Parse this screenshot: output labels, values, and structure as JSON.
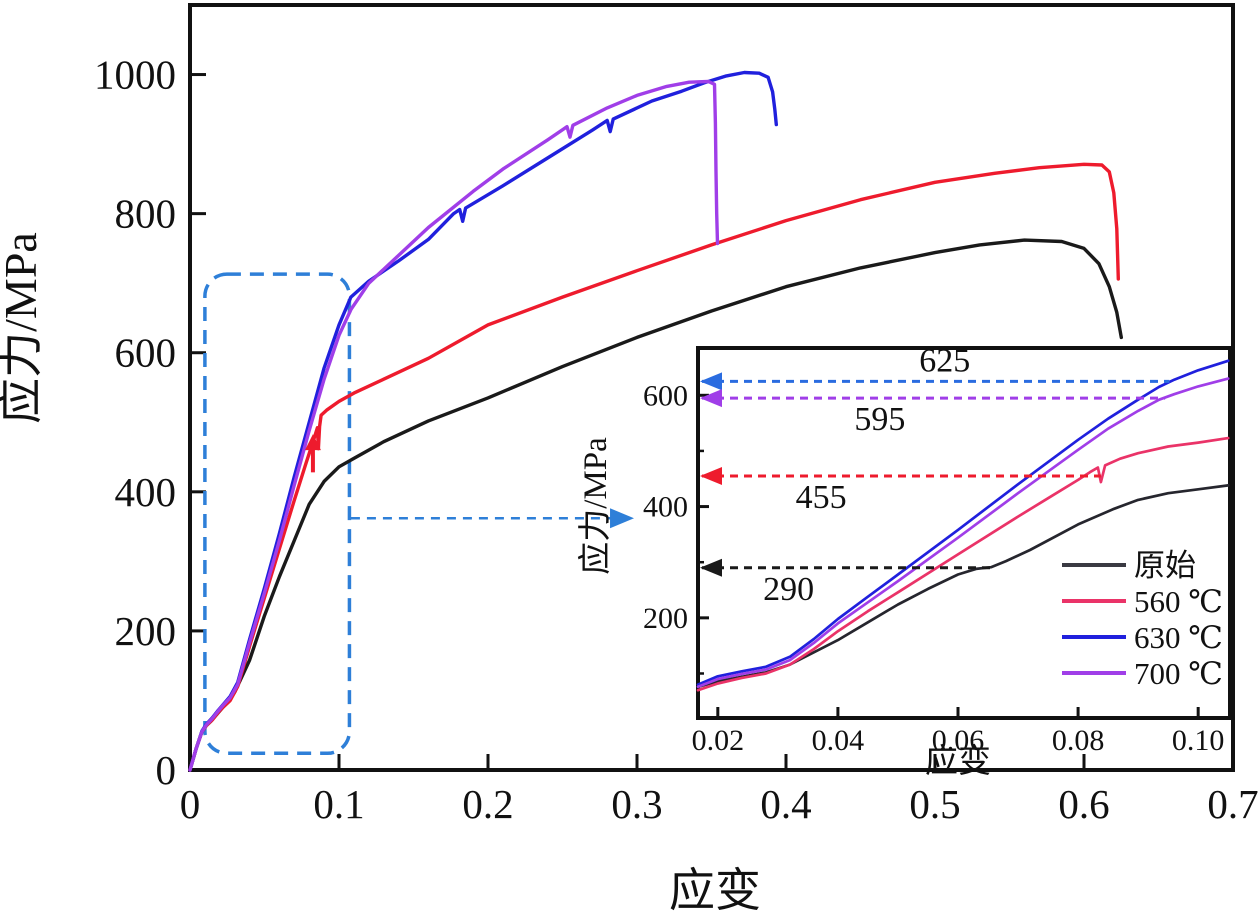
{
  "figure": {
    "type": "stress-strain curves figure with magnified inset",
    "background": "#ffffff"
  },
  "colors": {
    "frame": "#111111",
    "zoom_box_blue": "#2e7fd8",
    "annotation_blue": "#2a6ce0",
    "annotation_purple": "#a03ee8",
    "annotation_red": "#ee1b2d",
    "annotation_black": "#1a1a1a"
  },
  "chart_data": {
    "type": "line",
    "main": {
      "xlabel": "应变",
      "ylabel": "应力/MPa",
      "xlim": [
        0,
        0.7
      ],
      "ylim": [
        0,
        1100
      ],
      "xticks": [
        0,
        0.1,
        0.2,
        0.3,
        0.4,
        0.5,
        0.6,
        0.7
      ],
      "xtick_labels": [
        "0",
        "0.1",
        "0.2",
        "0.3",
        "0.4",
        "0.5",
        "0.6",
        "0.7"
      ],
      "yticks": [
        0,
        200,
        400,
        600,
        800,
        1000
      ],
      "ytick_labels": [
        "0",
        "200",
        "400",
        "600",
        "800",
        "1000"
      ],
      "grid": false,
      "series": [
        {
          "id": "original",
          "name": "原始",
          "color": "#1a1a1a",
          "points": [
            [
              0,
              0
            ],
            [
              0.004,
              30
            ],
            [
              0.008,
              55
            ],
            [
              0.011,
              64
            ],
            [
              0.014,
              70
            ],
            [
              0.018,
              80
            ],
            [
              0.022,
              90
            ],
            [
              0.026,
              98
            ],
            [
              0.03,
              112
            ],
            [
              0.04,
              158
            ],
            [
              0.05,
              222
            ],
            [
              0.06,
              278
            ],
            [
              0.07,
              330
            ],
            [
              0.08,
              382
            ],
            [
              0.09,
              415
            ],
            [
              0.1,
              436
            ],
            [
              0.11,
              448
            ],
            [
              0.13,
              472
            ],
            [
              0.16,
              502
            ],
            [
              0.2,
              535
            ],
            [
              0.25,
              580
            ],
            [
              0.3,
              622
            ],
            [
              0.35,
              660
            ],
            [
              0.4,
              695
            ],
            [
              0.45,
              722
            ],
            [
              0.5,
              744
            ],
            [
              0.53,
              755
            ],
            [
              0.56,
              762
            ],
            [
              0.585,
              760
            ],
            [
              0.6,
              750
            ],
            [
              0.61,
              728
            ],
            [
              0.617,
              695
            ],
            [
              0.622,
              658
            ],
            [
              0.625,
              622
            ]
          ]
        },
        {
          "id": "560c",
          "name": "560 ℃",
          "color": "#ee1b2d",
          "points": [
            [
              0,
              0
            ],
            [
              0.004,
              30
            ],
            [
              0.008,
              55
            ],
            [
              0.011,
              64
            ],
            [
              0.015,
              72
            ],
            [
              0.019,
              83
            ],
            [
              0.023,
              92
            ],
            [
              0.027,
              100
            ],
            [
              0.032,
              120
            ],
            [
              0.04,
              178
            ],
            [
              0.05,
              248
            ],
            [
              0.06,
              318
            ],
            [
              0.07,
              388
            ],
            [
              0.078,
              442
            ],
            [
              0.083,
              475
            ],
            [
              0.0855,
              492
            ],
            [
              0.0862,
              462
            ],
            [
              0.087,
              494
            ],
            [
              0.088,
              510
            ],
            [
              0.092,
              518
            ],
            [
              0.1,
              530
            ],
            [
              0.11,
              542
            ],
            [
              0.13,
              562
            ],
            [
              0.16,
              592
            ],
            [
              0.2,
              640
            ],
            [
              0.25,
              680
            ],
            [
              0.3,
              718
            ],
            [
              0.35,
              755
            ],
            [
              0.4,
              790
            ],
            [
              0.45,
              820
            ],
            [
              0.5,
              845
            ],
            [
              0.54,
              858
            ],
            [
              0.57,
              866
            ],
            [
              0.6,
              871
            ],
            [
              0.612,
              870
            ],
            [
              0.617,
              860
            ],
            [
              0.62,
              830
            ],
            [
              0.622,
              778
            ],
            [
              0.623,
              706
            ]
          ]
        },
        {
          "id": "630c",
          "name": "630 ℃",
          "color": "#2020dd",
          "points": [
            [
              0,
              0
            ],
            [
              0.004,
              30
            ],
            [
              0.008,
              56
            ],
            [
              0.011,
              66
            ],
            [
              0.015,
              75
            ],
            [
              0.019,
              86
            ],
            [
              0.023,
              96
            ],
            [
              0.027,
              106
            ],
            [
              0.032,
              126
            ],
            [
              0.04,
              188
            ],
            [
              0.05,
              262
            ],
            [
              0.06,
              340
            ],
            [
              0.07,
              422
            ],
            [
              0.08,
              500
            ],
            [
              0.09,
              578
            ],
            [
              0.1,
              640
            ],
            [
              0.108,
              680
            ],
            [
              0.12,
              703
            ],
            [
              0.14,
              732
            ],
            [
              0.16,
              763
            ],
            [
              0.177,
              800
            ],
            [
              0.181,
              806
            ],
            [
              0.183,
              789
            ],
            [
              0.185,
              808
            ],
            [
              0.21,
              840
            ],
            [
              0.24,
              880
            ],
            [
              0.27,
              920
            ],
            [
              0.28,
              934
            ],
            [
              0.282,
              918
            ],
            [
              0.284,
              936
            ],
            [
              0.31,
              962
            ],
            [
              0.33,
              976
            ],
            [
              0.345,
              988
            ],
            [
              0.36,
              998
            ],
            [
              0.372,
              1003
            ],
            [
              0.382,
              1002
            ],
            [
              0.388,
              996
            ],
            [
              0.391,
              975
            ],
            [
              0.3925,
              950
            ],
            [
              0.3935,
              928
            ]
          ]
        },
        {
          "id": "700c",
          "name": "700 ℃",
          "color": "#a03ee8",
          "points": [
            [
              0,
              0
            ],
            [
              0.004,
              30
            ],
            [
              0.008,
              55
            ],
            [
              0.011,
              65
            ],
            [
              0.015,
              74
            ],
            [
              0.019,
              85
            ],
            [
              0.023,
              95
            ],
            [
              0.027,
              104
            ],
            [
              0.032,
              123
            ],
            [
              0.04,
              183
            ],
            [
              0.05,
              255
            ],
            [
              0.06,
              330
            ],
            [
              0.07,
              410
            ],
            [
              0.08,
              488
            ],
            [
              0.09,
              562
            ],
            [
              0.1,
              625
            ],
            [
              0.108,
              662
            ],
            [
              0.12,
              700
            ],
            [
              0.14,
              740
            ],
            [
              0.16,
              780
            ],
            [
              0.19,
              832
            ],
            [
              0.21,
              864
            ],
            [
              0.24,
              906
            ],
            [
              0.253,
              925
            ],
            [
              0.255,
              910
            ],
            [
              0.257,
              927
            ],
            [
              0.28,
              952
            ],
            [
              0.3,
              970
            ],
            [
              0.32,
              983
            ],
            [
              0.335,
              989
            ],
            [
              0.348,
              990
            ],
            [
              0.352,
              986
            ],
            [
              0.3526,
              930
            ],
            [
              0.353,
              860
            ],
            [
              0.3535,
              800
            ],
            [
              0.354,
              757
            ]
          ]
        }
      ],
      "red_arrow_marker": {
        "x": 0.0825,
        "y_tail": 428,
        "y_tip": 483,
        "color": "#ee1b2d"
      },
      "zoom_region_box": {
        "x": [
          0.01,
          0.107
        ],
        "y": [
          24,
          713
        ],
        "color": "#2e7fd8"
      },
      "zoom_link_line": {
        "y": 362,
        "x1": 0.108,
        "x2": 0.284,
        "x_tip": 0.298,
        "color": "#2e7fd8"
      }
    },
    "inset": {
      "xlabel": "应变",
      "ylabel": "应力/MPa",
      "xlim": [
        0.0167,
        0.1053
      ],
      "ylim": [
        20,
        685
      ],
      "xticks": [
        0.02,
        0.04,
        0.06,
        0.08,
        0.1
      ],
      "xtick_labels": [
        "0.02",
        "0.04",
        "0.06",
        "0.08",
        "0.10"
      ],
      "yticks": [
        200,
        400,
        600
      ],
      "ytick_labels": [
        "200",
        "400",
        "600"
      ],
      "yticks_minor": [
        100,
        300,
        500
      ],
      "grid": false,
      "series": [
        {
          "id": "original",
          "name": "原始",
          "color": "#26262e",
          "points": [
            [
              0.0167,
              76
            ],
            [
              0.02,
              86
            ],
            [
              0.024,
              94
            ],
            [
              0.028,
              102
            ],
            [
              0.032,
              116
            ],
            [
              0.036,
              138
            ],
            [
              0.04,
              160
            ],
            [
              0.045,
              192
            ],
            [
              0.05,
              224
            ],
            [
              0.055,
              252
            ],
            [
              0.06,
              278
            ],
            [
              0.063,
              288
            ],
            [
              0.0655,
              291
            ],
            [
              0.068,
              302
            ],
            [
              0.072,
              322
            ],
            [
              0.08,
              368
            ],
            [
              0.086,
              396
            ],
            [
              0.09,
              412
            ],
            [
              0.095,
              424
            ],
            [
              0.1,
              431
            ],
            [
              0.105,
              438
            ]
          ]
        },
        {
          "id": "560c",
          "name": "560 ℃",
          "color": "#ea3368",
          "points": [
            [
              0.0167,
              70
            ],
            [
              0.02,
              82
            ],
            [
              0.024,
              92
            ],
            [
              0.028,
              100
            ],
            [
              0.032,
              116
            ],
            [
              0.036,
              144
            ],
            [
              0.04,
              176
            ],
            [
              0.045,
              212
            ],
            [
              0.05,
              246
            ],
            [
              0.06,
              314
            ],
            [
              0.07,
              382
            ],
            [
              0.075,
              415
            ],
            [
              0.08,
              448
            ],
            [
              0.082,
              462
            ],
            [
              0.0833,
              470
            ],
            [
              0.0838,
              444
            ],
            [
              0.0845,
              474
            ],
            [
              0.087,
              486
            ],
            [
              0.09,
              496
            ],
            [
              0.095,
              508
            ],
            [
              0.1,
              515
            ],
            [
              0.105,
              523
            ]
          ]
        },
        {
          "id": "630c",
          "name": "630 ℃",
          "color": "#2020dd",
          "points": [
            [
              0.0167,
              80
            ],
            [
              0.02,
              95
            ],
            [
              0.024,
              104
            ],
            [
              0.028,
              112
            ],
            [
              0.032,
              130
            ],
            [
              0.036,
              162
            ],
            [
              0.04,
              198
            ],
            [
              0.045,
              238
            ],
            [
              0.05,
              278
            ],
            [
              0.06,
              358
            ],
            [
              0.07,
              440
            ],
            [
              0.08,
              520
            ],
            [
              0.085,
              558
            ],
            [
              0.09,
              592
            ],
            [
              0.0935,
              615
            ],
            [
              0.096,
              628
            ],
            [
              0.1,
              645
            ],
            [
              0.105,
              662
            ]
          ]
        },
        {
          "id": "700c",
          "name": "700 ℃",
          "color": "#a03ee8",
          "points": [
            [
              0.0167,
              76
            ],
            [
              0.02,
              90
            ],
            [
              0.024,
              99
            ],
            [
              0.028,
              107
            ],
            [
              0.032,
              124
            ],
            [
              0.036,
              155
            ],
            [
              0.04,
              190
            ],
            [
              0.045,
              228
            ],
            [
              0.05,
              266
            ],
            [
              0.06,
              344
            ],
            [
              0.07,
              424
            ],
            [
              0.08,
              502
            ],
            [
              0.085,
              540
            ],
            [
              0.09,
              572
            ],
            [
              0.0935,
              592
            ],
            [
              0.096,
              602
            ],
            [
              0.1,
              616
            ],
            [
              0.105,
              630
            ]
          ]
        }
      ],
      "yield_annotations": [
        {
          "label": "625",
          "value": 625,
          "color": "#2a6ce0",
          "x_end": 0.0952,
          "label_x": 0.0578,
          "side": "above"
        },
        {
          "label": "595",
          "value": 595,
          "color": "#a03ee8",
          "x_end": 0.0945,
          "label_x": 0.047,
          "side": "below"
        },
        {
          "label": "455",
          "value": 455,
          "color": "#ee1b2d",
          "x_end": 0.0838,
          "label_x": 0.0372,
          "side": "below"
        },
        {
          "label": "290",
          "value": 290,
          "color": "#1a1a1a",
          "x_end": 0.0655,
          "label_x": 0.0318,
          "side": "below"
        }
      ],
      "legend": [
        {
          "label": "原始",
          "color": "#3a3a42"
        },
        {
          "label": "560 ℃",
          "color": "#ea3368"
        },
        {
          "label": "630 ℃",
          "color": "#2020dd"
        },
        {
          "label": "700 ℃",
          "color": "#a03ee8"
        }
      ],
      "legend_position": "lower right inside inset"
    }
  }
}
